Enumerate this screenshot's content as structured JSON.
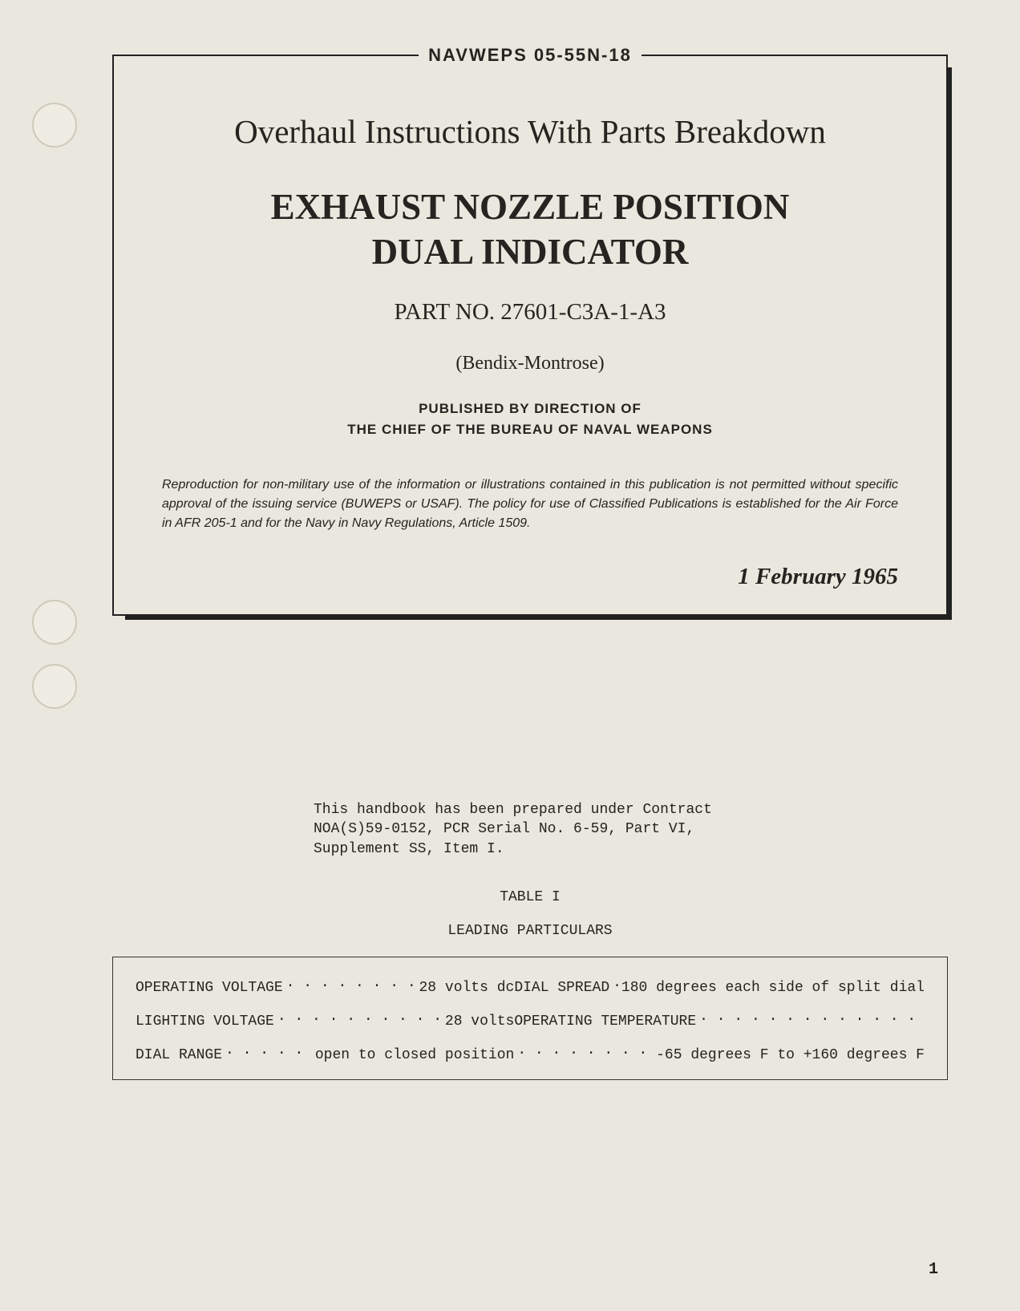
{
  "doc_id": "NAVWEPS 05-55N-18",
  "main_title": "Overhaul Instructions With Parts Breakdown",
  "product_title_line1": "EXHAUST NOZZLE POSITION",
  "product_title_line2": "DUAL INDICATOR",
  "part_no": "PART NO. 27601-C3A-1-A3",
  "manufacturer": "(Bendix-Montrose)",
  "publisher_line1": "PUBLISHED BY DIRECTION OF",
  "publisher_line2": "THE CHIEF OF THE BUREAU OF NAVAL WEAPONS",
  "reproduction_notice": "Reproduction for non-military use of the information or illustrations contained in this publication is not permitted without specific approval of the issuing service (BUWEPS or USAF). The policy for use of Classified Publications is established for the Air Force in AFR 205-1 and for the Navy in Navy Regulations, Article 1509.",
  "pub_date": "1 February 1965",
  "contract_note": "This handbook has been prepared under Contract NOA(S)59-0152, PCR Serial No. 6-59, Part VI, Supplement SS, Item I.",
  "table_label": "TABLE I",
  "table_caption": "LEADING PARTICULARS",
  "particulars": {
    "row1": {
      "left_label": "OPERATING VOLTAGE",
      "left_value": "28 volts dc",
      "right_label": "DIAL SPREAD",
      "right_value": "180 degrees each side of split dial"
    },
    "row2": {
      "left_label": "LIGHTING VOLTAGE",
      "left_value": "28 volts",
      "right_label": "OPERATING TEMPERATURE",
      "right_value": ""
    },
    "row3": {
      "left_label": "DIAL RANGE",
      "left_value": "open to closed position",
      "right_label": "",
      "right_value": "-65 degrees F to +160 degrees F"
    }
  },
  "page_number": "1",
  "colors": {
    "paper": "#eae7de",
    "ink": "#262320",
    "border": "#222222"
  },
  "fonts": {
    "serif": "Times New Roman",
    "sans": "Arial",
    "mono": "Courier New"
  }
}
